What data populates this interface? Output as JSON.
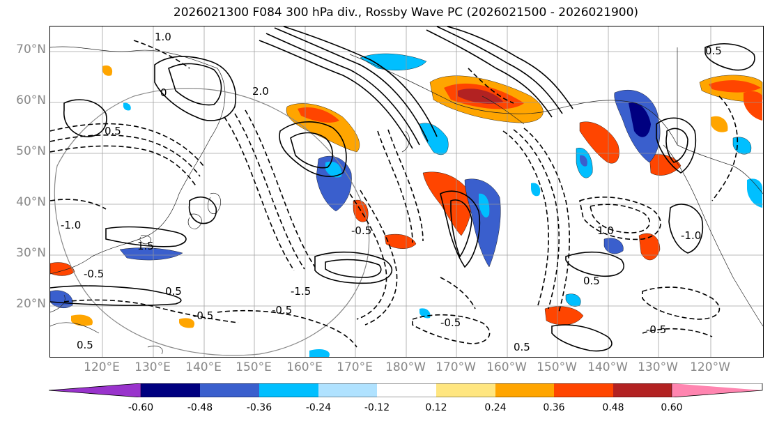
{
  "title": "2026021300 F084 300 hPa div., Rossby Wave PC (2026021500 - 2026021900)",
  "map": {
    "lat_labels": [
      "70°N",
      "60°N",
      "50°N",
      "40°N",
      "30°N",
      "20°N"
    ],
    "lon_labels": [
      "120°E",
      "130°E",
      "140°E",
      "150°E",
      "160°E",
      "170°E",
      "180°W",
      "170°W",
      "160°W",
      "150°W",
      "140°W",
      "130°W",
      "120°W"
    ],
    "contour_labels": [
      "0.5",
      "-0.5",
      "1.0",
      "-1.0",
      "1.5",
      "-1.5",
      "2.0",
      "0",
      "0.5",
      "-0.5",
      "-0.5",
      "0.5",
      "1.0",
      "-1.0",
      "0.5",
      "-0.5",
      "0.5",
      "-0.5",
      "-0.5",
      "0.5"
    ]
  },
  "colorbar": {
    "colors": [
      "#9933cc",
      "#000080",
      "#3a5fcd",
      "#00bfff",
      "#b0e2ff",
      "#ffffff",
      "#ffe680",
      "#ffa500",
      "#ff4500",
      "#b22222",
      "#ff85b0"
    ],
    "tick_labels": [
      "-0.60",
      "-0.48",
      "-0.36",
      "-0.24",
      "-0.12",
      "0.12",
      "0.24",
      "0.36",
      "0.48",
      "0.60"
    ]
  }
}
